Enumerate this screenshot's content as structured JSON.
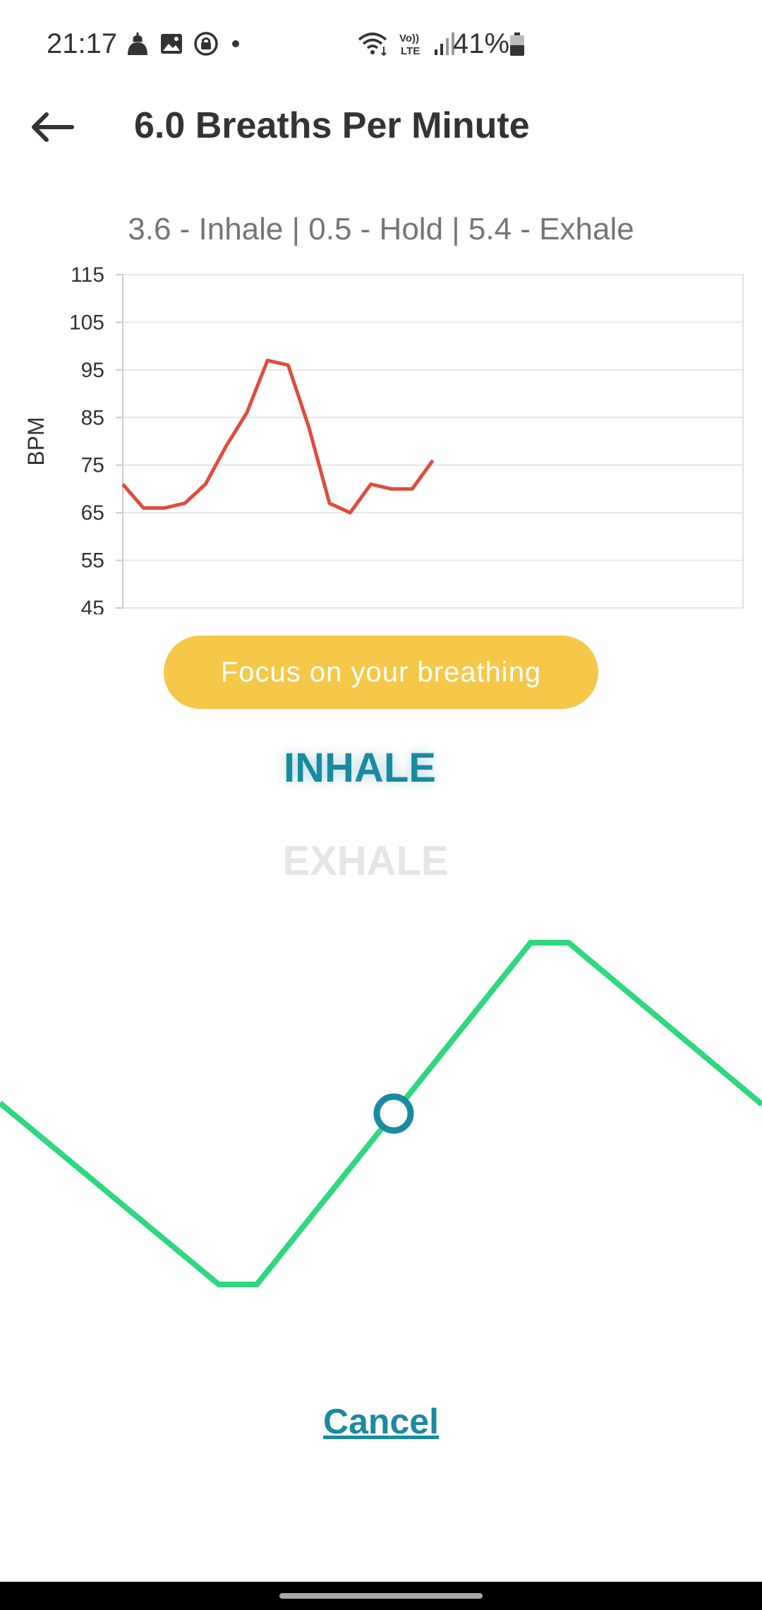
{
  "status_bar": {
    "time": "21:17",
    "battery": "41%",
    "left_icons": [
      "mosque-icon",
      "image-icon",
      "lock-circle-icon",
      "dot-icon"
    ],
    "right_icons": [
      "wifi-icon",
      "volte-icon",
      "signal-icon",
      "battery-icon"
    ]
  },
  "app_bar": {
    "title": "6.0 Breaths Per Minute",
    "back_icon": "arrow-left-icon"
  },
  "pattern": "3.6 - Inhale | 0.5 - Hold | 5.4 - Exhale",
  "chart_data": {
    "type": "line",
    "ylabel": "BPM",
    "ylim": [
      45,
      115
    ],
    "yticks": [
      "115",
      "105",
      "95",
      "85",
      "75",
      "65",
      "55",
      "45"
    ],
    "grid": true,
    "series": [
      {
        "color": "#e24b3c",
        "values": [
          71,
          66,
          66,
          67,
          71,
          79,
          86,
          97,
          96,
          83,
          67,
          65,
          71,
          70,
          70,
          76
        ]
      }
    ],
    "max_points": 31
  },
  "focus_pill": "Focus on your breathing",
  "inhale_label": "INHALE",
  "exhale_label": "EXHALE",
  "wave": {
    "color": "#2dd87f",
    "indicator_color": "#1a8aa0",
    "progress": 0.62
  },
  "cancel_label": "Cancel"
}
